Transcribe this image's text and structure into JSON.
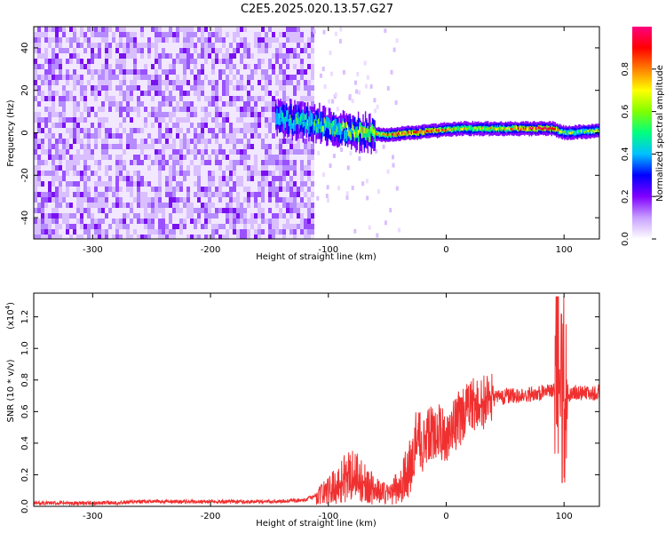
{
  "title": "C2E5.2025.020.13.57.G27",
  "chart_data": [
    {
      "type": "heatmap",
      "xlabel": "Height of straight line (km)",
      "ylabel": "Frequency (Hz)",
      "xlim": [
        -350,
        130
      ],
      "ylim": [
        -50,
        50
      ],
      "x_ticks": [
        -300,
        -200,
        -100,
        0,
        100
      ],
      "y_ticks": [
        -40,
        -20,
        0,
        20,
        40
      ],
      "colorbar": {
        "label": "Normalized spectral amplitude",
        "range": [
          0,
          1
        ],
        "ticks": [
          "0.0",
          "0.2",
          "0.4",
          "0.6",
          "0.8"
        ],
        "colors": [
          "#ffffff",
          "#c8a0ff",
          "#8000ff",
          "#0000ff",
          "#00c0ff",
          "#00ff80",
          "#80ff00",
          "#ffff00",
          "#ff8000",
          "#ff0000",
          "#ff0080"
        ]
      },
      "noise_region_x": [
        -350,
        -113
      ],
      "signal_line": [
        {
          "x": -145,
          "freq": 7,
          "amp": 0.35
        },
        {
          "x": -130,
          "freq": 6,
          "amp": 0.4
        },
        {
          "x": -115,
          "freq": 5,
          "amp": 0.45
        },
        {
          "x": -100,
          "freq": 3,
          "amp": 0.5
        },
        {
          "x": -85,
          "freq": 1,
          "amp": 0.55
        },
        {
          "x": -70,
          "freq": 0,
          "amp": 0.6
        },
        {
          "x": -50,
          "freq": -1,
          "amp": 0.7
        },
        {
          "x": -30,
          "freq": 0,
          "amp": 0.75
        },
        {
          "x": -10,
          "freq": 1,
          "amp": 0.75
        },
        {
          "x": 10,
          "freq": 2,
          "amp": 0.6
        },
        {
          "x": 40,
          "freq": 2,
          "amp": 0.6
        },
        {
          "x": 70,
          "freq": 2,
          "amp": 0.8
        },
        {
          "x": 90,
          "freq": 2,
          "amp": 0.85
        },
        {
          "x": 100,
          "freq": 0,
          "amp": 0.5
        },
        {
          "x": 130,
          "freq": 1,
          "amp": 0.55
        }
      ]
    },
    {
      "type": "line",
      "xlabel": "Height of straight line (km)",
      "ylabel": "SNR (10 * v/v)",
      "y_exponent_label": "(x10",
      "y_exponent": "4",
      "y_exponent_close": ")",
      "xlim": [
        -350,
        130
      ],
      "ylim": [
        0,
        1.35
      ],
      "x_ticks": [
        -300,
        -200,
        -100,
        0,
        100
      ],
      "y_ticks": [
        "0.0",
        "0.2",
        "0.4",
        "0.6",
        "0.8",
        "1.0",
        "1.2"
      ],
      "series": [
        {
          "color": "#f03030",
          "x": [
            -350,
            -300,
            -250,
            -200,
            -150,
            -120,
            -100,
            -90,
            -80,
            -70,
            -60,
            -50,
            -40,
            -30,
            -25,
            -20,
            -10,
            0,
            10,
            20,
            30,
            40,
            50,
            60,
            70,
            80,
            90,
            95,
            98,
            100,
            102,
            105,
            110,
            120,
            130
          ],
          "y": [
            0.02,
            0.02,
            0.03,
            0.03,
            0.03,
            0.04,
            0.1,
            0.15,
            0.22,
            0.15,
            0.1,
            0.08,
            0.12,
            0.25,
            0.45,
            0.4,
            0.48,
            0.45,
            0.55,
            0.62,
            0.66,
            0.68,
            0.7,
            0.7,
            0.71,
            0.72,
            0.73,
            0.75,
            0.95,
            0.6,
            0.75,
            0.7,
            0.72,
            0.72,
            0.72
          ]
        }
      ]
    }
  ]
}
